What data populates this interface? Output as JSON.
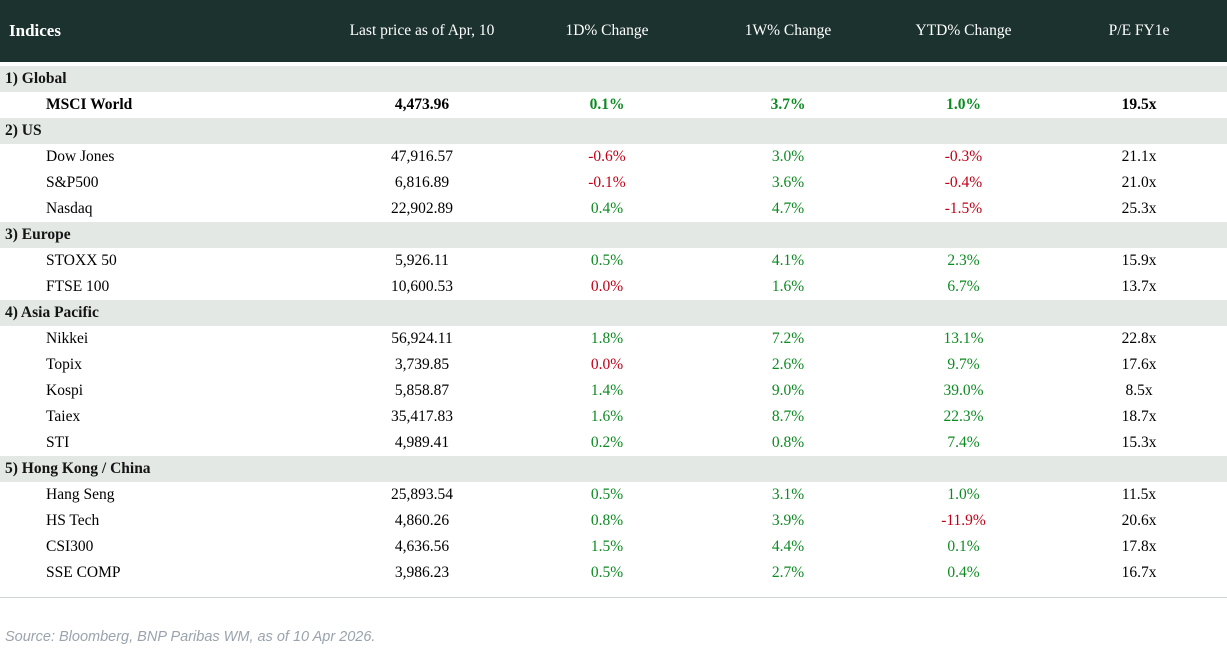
{
  "colors": {
    "header_bg": "#1b322e",
    "header_text": "#ffffff",
    "section_bg": "#e3e8e4",
    "positive": "#0d8a22",
    "negative": "#c00016",
    "source_text": "#9aa3ad"
  },
  "footer": {
    "source": "Source: Bloomberg, BNP Paribas WM, as of 10 Apr 2026."
  },
  "chart_data": {
    "type": "table",
    "title": "Indices",
    "columns": [
      "Indices",
      "Last price as of Apr, 10",
      "1D% Change",
      "1W% Change",
      "YTD% Change",
      "P/E FY1e"
    ],
    "color_rule": "change values > 0 are green, values <= 0 (including 0.0%) are red",
    "sections": [
      {
        "label": "1) Global",
        "rows": [
          {
            "name": "MSCI World",
            "last_price": "4,473.96",
            "chg_1d": "0.1%",
            "chg_1w": "3.7%",
            "chg_ytd": "1.0%",
            "pe_fy1e": "19.5x",
            "bold": true
          }
        ]
      },
      {
        "label": "2) US",
        "rows": [
          {
            "name": "Dow Jones",
            "last_price": "47,916.57",
            "chg_1d": "-0.6%",
            "chg_1w": "3.0%",
            "chg_ytd": "-0.3%",
            "pe_fy1e": "21.1x",
            "bold": false
          },
          {
            "name": "S&P500",
            "last_price": "6,816.89",
            "chg_1d": "-0.1%",
            "chg_1w": "3.6%",
            "chg_ytd": "-0.4%",
            "pe_fy1e": "21.0x",
            "bold": false
          },
          {
            "name": "Nasdaq",
            "last_price": "22,902.89",
            "chg_1d": "0.4%",
            "chg_1w": "4.7%",
            "chg_ytd": "-1.5%",
            "pe_fy1e": "25.3x",
            "bold": false
          }
        ]
      },
      {
        "label": "3) Europe",
        "rows": [
          {
            "name": "STOXX 50",
            "last_price": "5,926.11",
            "chg_1d": "0.5%",
            "chg_1w": "4.1%",
            "chg_ytd": "2.3%",
            "pe_fy1e": "15.9x",
            "bold": false
          },
          {
            "name": "FTSE 100",
            "last_price": "10,600.53",
            "chg_1d": "0.0%",
            "chg_1w": "1.6%",
            "chg_ytd": "6.7%",
            "pe_fy1e": "13.7x",
            "bold": false
          }
        ]
      },
      {
        "label": "4) Asia Pacific",
        "rows": [
          {
            "name": "Nikkei",
            "last_price": "56,924.11",
            "chg_1d": "1.8%",
            "chg_1w": "7.2%",
            "chg_ytd": "13.1%",
            "pe_fy1e": "22.8x",
            "bold": false
          },
          {
            "name": "Topix",
            "last_price": "3,739.85",
            "chg_1d": "0.0%",
            "chg_1w": "2.6%",
            "chg_ytd": "9.7%",
            "pe_fy1e": "17.6x",
            "bold": false
          },
          {
            "name": "Kospi",
            "last_price": "5,858.87",
            "chg_1d": "1.4%",
            "chg_1w": "9.0%",
            "chg_ytd": "39.0%",
            "pe_fy1e": "8.5x",
            "bold": false
          },
          {
            "name": "Taiex",
            "last_price": "35,417.83",
            "chg_1d": "1.6%",
            "chg_1w": "8.7%",
            "chg_ytd": "22.3%",
            "pe_fy1e": "18.7x",
            "bold": false
          },
          {
            "name": "STI",
            "last_price": "4,989.41",
            "chg_1d": "0.2%",
            "chg_1w": "0.8%",
            "chg_ytd": "7.4%",
            "pe_fy1e": "15.3x",
            "bold": false
          }
        ]
      },
      {
        "label": "5) Hong Kong / China",
        "rows": [
          {
            "name": "Hang Seng",
            "last_price": "25,893.54",
            "chg_1d": "0.5%",
            "chg_1w": "3.1%",
            "chg_ytd": "1.0%",
            "pe_fy1e": "11.5x",
            "bold": false
          },
          {
            "name": "HS Tech",
            "last_price": "4,860.26",
            "chg_1d": "0.8%",
            "chg_1w": "3.9%",
            "chg_ytd": "-11.9%",
            "pe_fy1e": "20.6x",
            "bold": false
          },
          {
            "name": "CSI300",
            "last_price": "4,636.56",
            "chg_1d": "1.5%",
            "chg_1w": "4.4%",
            "chg_ytd": "0.1%",
            "pe_fy1e": "17.8x",
            "bold": false
          },
          {
            "name": "SSE COMP",
            "last_price": "3,986.23",
            "chg_1d": "0.5%",
            "chg_1w": "2.7%",
            "chg_ytd": "0.4%",
            "pe_fy1e": "16.7x",
            "bold": false
          }
        ]
      }
    ]
  }
}
